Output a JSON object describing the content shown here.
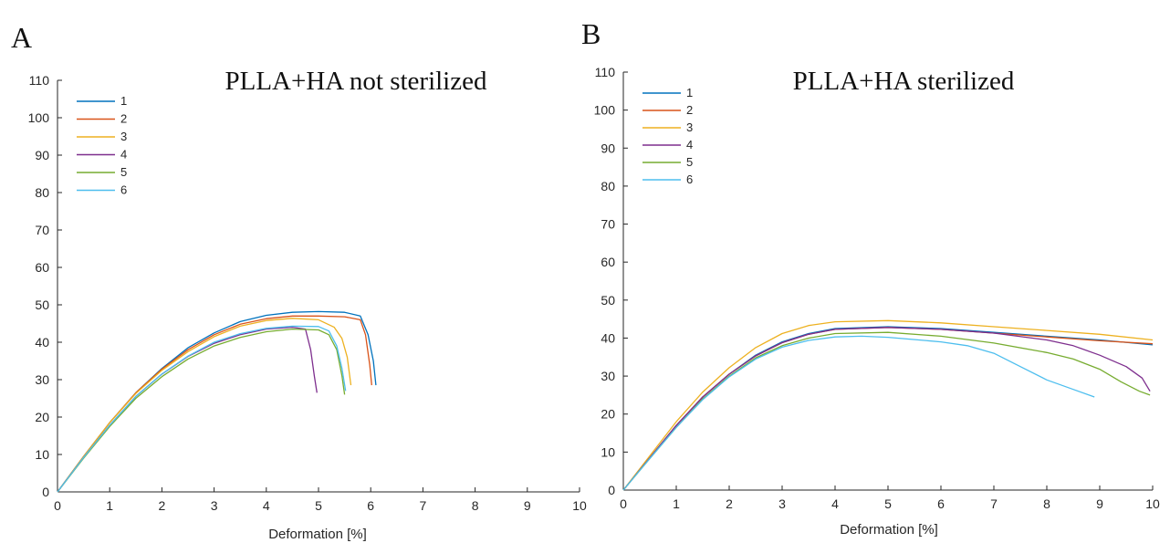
{
  "chart_data": [
    {
      "panel": "A",
      "type": "line",
      "title": "PLLA+HA not sterilized",
      "xlabel": "Deformation [%]",
      "ylabel": "",
      "xlim": [
        0,
        10
      ],
      "ylim": [
        0,
        110
      ],
      "xticks": [
        0,
        1,
        2,
        3,
        4,
        5,
        6,
        7,
        8,
        9,
        10
      ],
      "yticks": [
        0,
        10,
        20,
        30,
        40,
        50,
        60,
        70,
        80,
        90,
        100,
        110
      ],
      "grid": false,
      "legend_position": "top-left",
      "series": [
        {
          "name": "1",
          "color": "#0072bd",
          "x": [
            0,
            0.5,
            1,
            1.5,
            2,
            2.5,
            3,
            3.5,
            4,
            4.5,
            5,
            5.5,
            5.8,
            5.95,
            6.05,
            6.1
          ],
          "y": [
            0,
            9.5,
            18.5,
            26.5,
            33,
            38.5,
            42.5,
            45.5,
            47.2,
            48,
            48.2,
            48,
            47,
            42,
            35,
            28.5
          ]
        },
        {
          "name": "2",
          "color": "#d95319",
          "x": [
            0,
            0.5,
            1,
            1.5,
            2,
            2.5,
            3,
            3.5,
            4,
            4.5,
            5,
            5.5,
            5.8,
            5.9,
            5.98,
            6.02
          ],
          "y": [
            0,
            9.5,
            18.5,
            26.5,
            32.8,
            38,
            42,
            44.8,
            46.3,
            47,
            47,
            46.8,
            46,
            42,
            34,
            28.5
          ]
        },
        {
          "name": "3",
          "color": "#edb120",
          "x": [
            0,
            0.5,
            1,
            1.5,
            2,
            2.5,
            3,
            3.5,
            4,
            4.5,
            5,
            5.3,
            5.45,
            5.55,
            5.62
          ],
          "y": [
            0,
            9.5,
            18.5,
            26.3,
            32.5,
            37.5,
            41.5,
            44.3,
            45.8,
            46.4,
            46,
            44,
            41,
            36,
            28.5
          ]
        },
        {
          "name": "4",
          "color": "#7e2f8e",
          "x": [
            0,
            0.5,
            1,
            1.5,
            2,
            2.5,
            3,
            3.5,
            4,
            4.5,
            4.75,
            4.85,
            4.92,
            4.97
          ],
          "y": [
            0,
            9.2,
            17.8,
            25.5,
            31.5,
            36.2,
            39.7,
            42,
            43.5,
            44,
            43.5,
            38,
            31,
            26.5
          ]
        },
        {
          "name": "5",
          "color": "#77ac30",
          "x": [
            0,
            0.5,
            1,
            1.5,
            2,
            2.5,
            3,
            3.5,
            4,
            4.5,
            5,
            5.2,
            5.35,
            5.45,
            5.5
          ],
          "y": [
            0,
            9,
            17.5,
            25,
            30.8,
            35.5,
            39,
            41.3,
            42.8,
            43.5,
            43.3,
            42,
            38,
            31,
            26
          ]
        },
        {
          "name": "6",
          "color": "#4dbeee",
          "x": [
            0,
            0.5,
            1,
            1.5,
            2,
            2.5,
            3,
            3.5,
            4,
            4.5,
            5,
            5.2,
            5.35,
            5.45,
            5.52
          ],
          "y": [
            0,
            9.2,
            17.8,
            25.5,
            31.5,
            36.3,
            40,
            42.3,
            43.7,
            44.3,
            44.2,
            43,
            39,
            33,
            27
          ]
        }
      ]
    },
    {
      "panel": "B",
      "type": "line",
      "title": "PLLA+HA sterilized",
      "xlabel": "Deformation [%]",
      "ylabel": "",
      "xlim": [
        0,
        10
      ],
      "ylim": [
        0,
        110
      ],
      "xticks": [
        0,
        1,
        2,
        3,
        4,
        5,
        6,
        7,
        8,
        9,
        10
      ],
      "yticks": [
        0,
        10,
        20,
        30,
        40,
        50,
        60,
        70,
        80,
        90,
        100,
        110
      ],
      "grid": false,
      "legend_position": "top-left",
      "series": [
        {
          "name": "1",
          "color": "#0072bd",
          "x": [
            0,
            0.5,
            1,
            1.5,
            2,
            2.5,
            3,
            3.5,
            4,
            5,
            6,
            7,
            8,
            9,
            10
          ],
          "y": [
            0,
            8.5,
            17,
            24.5,
            30.5,
            35.5,
            39,
            41.2,
            42.5,
            43,
            42.5,
            41.5,
            40.5,
            39.5,
            38.2
          ]
        },
        {
          "name": "2",
          "color": "#d95319",
          "x": [
            0,
            0.5,
            1,
            1.5,
            2,
            2.5,
            3,
            3.5,
            4,
            5,
            6,
            7,
            8,
            9,
            10
          ],
          "y": [
            0,
            8.5,
            17,
            24.5,
            30.5,
            35.3,
            38.8,
            41,
            42.3,
            42.8,
            42.3,
            41.3,
            40.3,
            39.3,
            38.5
          ]
        },
        {
          "name": "3",
          "color": "#edb120",
          "x": [
            0,
            0.5,
            1,
            1.5,
            2,
            2.5,
            3,
            3.5,
            4,
            5,
            6,
            7,
            8,
            9,
            10
          ],
          "y": [
            0,
            9,
            18,
            25.8,
            32.2,
            37.5,
            41.2,
            43.3,
            44.3,
            44.6,
            44,
            43,
            42,
            41,
            39.5
          ]
        },
        {
          "name": "4",
          "color": "#7e2f8e",
          "x": [
            0,
            0.5,
            1,
            1.5,
            2,
            2.5,
            3,
            3.5,
            4,
            5,
            6,
            7,
            8,
            8.5,
            9,
            9.5,
            9.8,
            9.95
          ],
          "y": [
            0,
            8.5,
            17,
            24.5,
            30.5,
            35.3,
            38.8,
            41,
            42.3,
            42.8,
            42.3,
            41.3,
            39.5,
            38,
            35.5,
            32.5,
            29.5,
            26
          ]
        },
        {
          "name": "5",
          "color": "#77ac30",
          "x": [
            0,
            0.5,
            1,
            1.5,
            2,
            2.5,
            3,
            3.5,
            4,
            5,
            6,
            7,
            8,
            8.5,
            9,
            9.4,
            9.75,
            9.95
          ],
          "y": [
            0,
            8.3,
            16.5,
            24,
            30,
            34.8,
            38,
            40,
            41.2,
            41.5,
            40.5,
            38.7,
            36.2,
            34.5,
            31.8,
            28.5,
            26,
            25
          ]
        },
        {
          "name": "6",
          "color": "#4dbeee",
          "x": [
            0,
            0.5,
            1,
            1.5,
            2,
            2.5,
            3,
            3.5,
            4,
            4.5,
            5,
            6,
            6.5,
            7,
            7.5,
            8,
            8.5,
            8.9
          ],
          "y": [
            0,
            8.3,
            16.5,
            23.8,
            29.8,
            34.5,
            37.6,
            39.4,
            40.3,
            40.5,
            40.2,
            39,
            38,
            36,
            32.5,
            29,
            26.5,
            24.5
          ]
        }
      ]
    }
  ]
}
